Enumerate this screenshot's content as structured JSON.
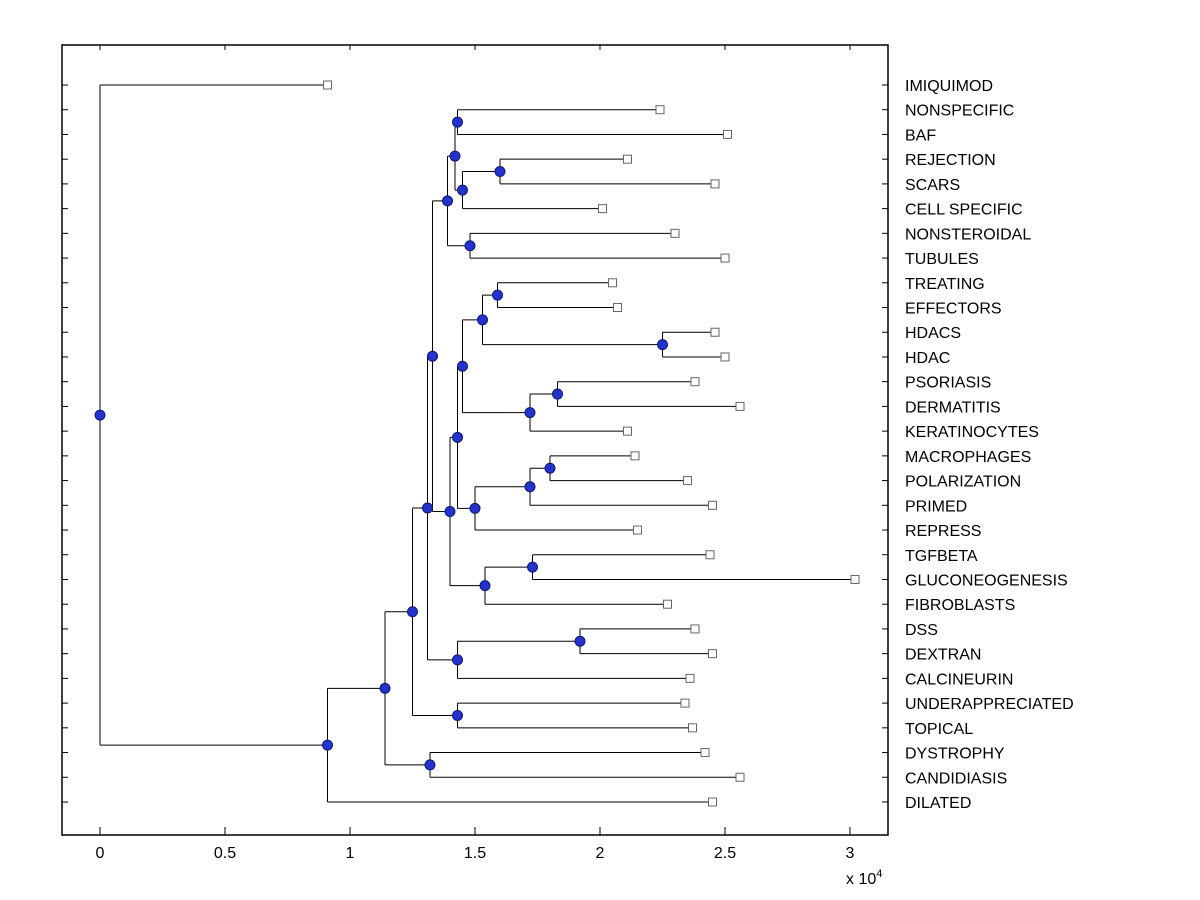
{
  "figure": {
    "background": "#ffffff"
  },
  "chart_data": {
    "type": "dendrogram",
    "orientation": "horizontal-right",
    "title": "",
    "x_axis": {
      "tick_values": [
        0,
        0.5,
        1,
        1.5,
        2,
        2.5,
        3
      ],
      "tick_labels": [
        "0",
        "0.5",
        "1",
        "1.5",
        "2",
        "2.5",
        "3"
      ],
      "multiplier_base": "x 10",
      "multiplier_exponent": "4",
      "unit_scale": 10000,
      "range": [
        -0.152,
        3.152
      ]
    },
    "markers": {
      "internal_node": "filled-circle",
      "leaf": "open-square"
    },
    "colors": {
      "background": "#ffffff",
      "branch": "#000000",
      "axis": "#000000",
      "label": "#000000",
      "internal_node_fill": "#2333cc",
      "internal_node_edge": "#0d1877",
      "leaf_marker_fill": "#ffffff",
      "leaf_marker_edge": "#666666"
    },
    "leaves": [
      {
        "name": "IMIQUIMOD",
        "x": 0.91
      },
      {
        "name": "NONSPECIFIC",
        "x": 2.24
      },
      {
        "name": "BAF",
        "x": 2.51
      },
      {
        "name": "REJECTION",
        "x": 2.11
      },
      {
        "name": "SCARS",
        "x": 2.46
      },
      {
        "name": "CELL SPECIFIC",
        "x": 2.01
      },
      {
        "name": "NONSTEROIDAL",
        "x": 2.3
      },
      {
        "name": "TUBULES",
        "x": 2.5
      },
      {
        "name": "TREATING",
        "x": 2.05
      },
      {
        "name": "EFFECTORS",
        "x": 2.07
      },
      {
        "name": "HDACS",
        "x": 2.46
      },
      {
        "name": "HDAC",
        "x": 2.5
      },
      {
        "name": "PSORIASIS",
        "x": 2.38
      },
      {
        "name": "DERMATITIS",
        "x": 2.56
      },
      {
        "name": "KERATINOCYTES",
        "x": 2.11
      },
      {
        "name": "MACROPHAGES",
        "x": 2.14
      },
      {
        "name": "POLARIZATION",
        "x": 2.35
      },
      {
        "name": "PRIMED",
        "x": 2.45
      },
      {
        "name": "REPRESS",
        "x": 2.15
      },
      {
        "name": "TGFBETA",
        "x": 2.44
      },
      {
        "name": "GLUCONEOGENESIS",
        "x": 3.02
      },
      {
        "name": "FIBROBLASTS",
        "x": 2.27
      },
      {
        "name": "DSS",
        "x": 2.38
      },
      {
        "name": "DEXTRAN",
        "x": 2.45
      },
      {
        "name": "CALCINEURIN",
        "x": 2.36
      },
      {
        "name": "UNDERAPPRECIATED",
        "x": 2.34
      },
      {
        "name": "TOPICAL",
        "x": 2.37
      },
      {
        "name": "DYSTROPHY",
        "x": 2.42
      },
      {
        "name": "CANDIDIASIS",
        "x": 2.56
      },
      {
        "name": "DILATED",
        "x": 2.45
      }
    ],
    "tree": {
      "x": 0,
      "children": [
        {
          "leaf": 0
        },
        {
          "x": 0.91,
          "children": [
            {
              "x": 1.14,
              "children": [
                {
                  "x": 1.25,
                  "children": [
                    {
                      "x": 1.31,
                      "children": [
                        {
                          "x": 1.33,
                          "children": [
                            {
                              "x": 1.39,
                              "children": [
                                {
                                  "x": 1.42,
                                  "children": [
                                    {
                                      "x": 1.43,
                                      "children": [
                                        {
                                          "leaf": 1
                                        },
                                        {
                                          "leaf": 2
                                        }
                                      ]
                                    },
                                    {
                                      "x": 1.45,
                                      "children": [
                                        {
                                          "x": 1.6,
                                          "children": [
                                            {
                                              "leaf": 3
                                            },
                                            {
                                              "leaf": 4
                                            }
                                          ]
                                        },
                                        {
                                          "leaf": 5
                                        }
                                      ]
                                    }
                                  ]
                                },
                                {
                                  "x": 1.48,
                                  "children": [
                                    {
                                      "leaf": 6
                                    },
                                    {
                                      "leaf": 7
                                    }
                                  ]
                                }
                              ]
                            },
                            {
                              "x": 1.4,
                              "children": [
                                {
                                  "x": 1.43,
                                  "children": [
                                    {
                                      "x": 1.45,
                                      "children": [
                                        {
                                          "x": 1.53,
                                          "children": [
                                            {
                                              "x": 1.59,
                                              "children": [
                                                {
                                                  "leaf": 8
                                                },
                                                {
                                                  "leaf": 9
                                                }
                                              ]
                                            },
                                            {
                                              "x": 2.25,
                                              "children": [
                                                {
                                                  "leaf": 10
                                                },
                                                {
                                                  "leaf": 11
                                                }
                                              ]
                                            }
                                          ]
                                        },
                                        {
                                          "x": 1.72,
                                          "children": [
                                            {
                                              "x": 1.83,
                                              "children": [
                                                {
                                                  "leaf": 12
                                                },
                                                {
                                                  "leaf": 13
                                                }
                                              ]
                                            },
                                            {
                                              "leaf": 14
                                            }
                                          ]
                                        }
                                      ]
                                    },
                                    {
                                      "x": 1.5,
                                      "children": [
                                        {
                                          "x": 1.72,
                                          "children": [
                                            {
                                              "x": 1.8,
                                              "children": [
                                                {
                                                  "leaf": 15
                                                },
                                                {
                                                  "leaf": 16
                                                }
                                              ]
                                            },
                                            {
                                              "leaf": 17
                                            }
                                          ]
                                        },
                                        {
                                          "leaf": 18
                                        }
                                      ]
                                    }
                                  ]
                                },
                                {
                                  "x": 1.54,
                                  "children": [
                                    {
                                      "x": 1.73,
                                      "children": [
                                        {
                                          "leaf": 19
                                        },
                                        {
                                          "leaf": 20
                                        }
                                      ]
                                    },
                                    {
                                      "leaf": 21
                                    }
                                  ]
                                }
                              ]
                            }
                          ]
                        },
                        {
                          "x": 1.43,
                          "children": [
                            {
                              "x": 1.92,
                              "children": [
                                {
                                  "leaf": 22
                                },
                                {
                                  "leaf": 23
                                }
                              ]
                            },
                            {
                              "leaf": 24
                            }
                          ]
                        }
                      ]
                    },
                    {
                      "x": 1.43,
                      "children": [
                        {
                          "leaf": 25
                        },
                        {
                          "leaf": 26
                        }
                      ]
                    }
                  ]
                },
                {
                  "x": 1.32,
                  "children": [
                    {
                      "leaf": 27
                    },
                    {
                      "leaf": 28
                    }
                  ]
                }
              ]
            },
            {
              "leaf": 29
            }
          ]
        }
      ]
    }
  }
}
